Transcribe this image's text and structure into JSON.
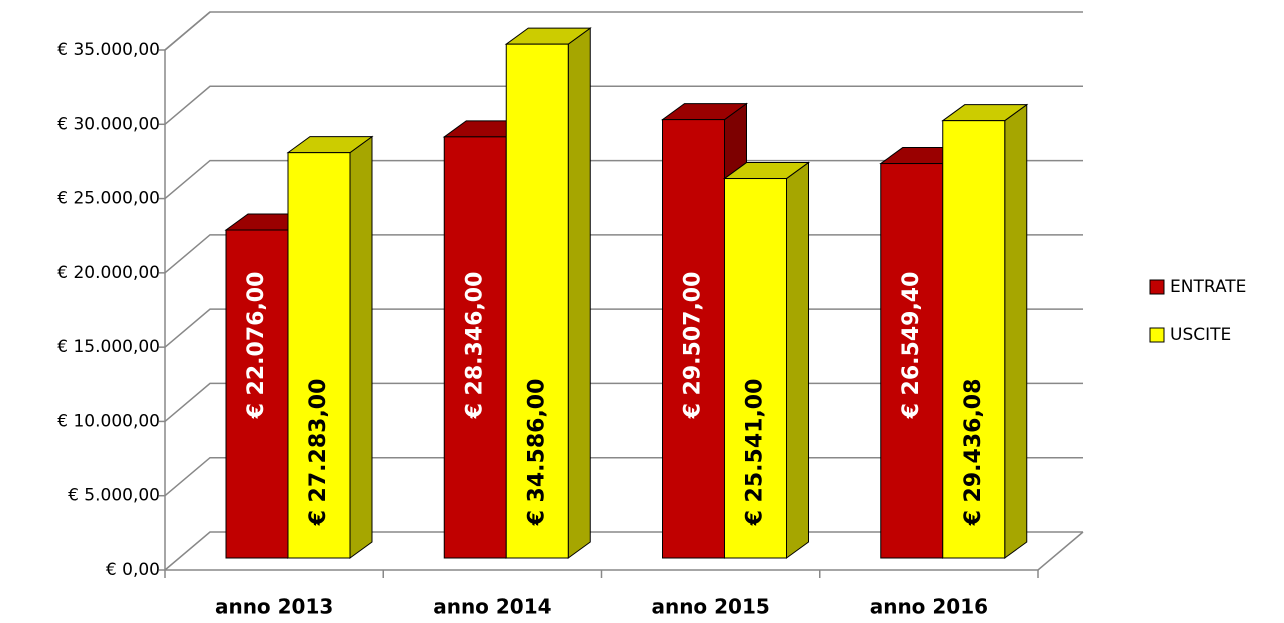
{
  "chart_data": {
    "type": "bar3d",
    "categories": [
      "anno 2013",
      "anno 2014",
      "anno 2015",
      "anno 2016"
    ],
    "series": [
      {
        "name": "ENTRATE",
        "color": "#c00000",
        "values": [
          22076,
          28346,
          29507,
          26549.4
        ],
        "value_labels": [
          "€ 22.076,00",
          "€ 28.346,00",
          "€ 29.507,00",
          "€ 26.549,40"
        ]
      },
      {
        "name": "USCITE",
        "color": "#ffff00",
        "values": [
          27283,
          34586,
          25541,
          29436.08
        ],
        "value_labels": [
          "€ 27.283,00",
          "€ 34.586,00",
          "€ 25.541,00",
          "€ 29.436,08"
        ]
      }
    ],
    "ylim": [
      0,
      35000
    ],
    "yticks": [
      {
        "value": 0,
        "label": "€ 0,00"
      },
      {
        "value": 5000,
        "label": "€ 5.000,00"
      },
      {
        "value": 10000,
        "label": "€ 10.000,00"
      },
      {
        "value": 15000,
        "label": "€ 15.000,00"
      },
      {
        "value": 20000,
        "label": "€ 20.000,00"
      },
      {
        "value": 25000,
        "label": "€ 25.000,00"
      },
      {
        "value": 30000,
        "label": "€ 30.000,00"
      },
      {
        "value": 35000,
        "label": "€ 35.000,00"
      }
    ],
    "grid": true,
    "legend": "right"
  }
}
